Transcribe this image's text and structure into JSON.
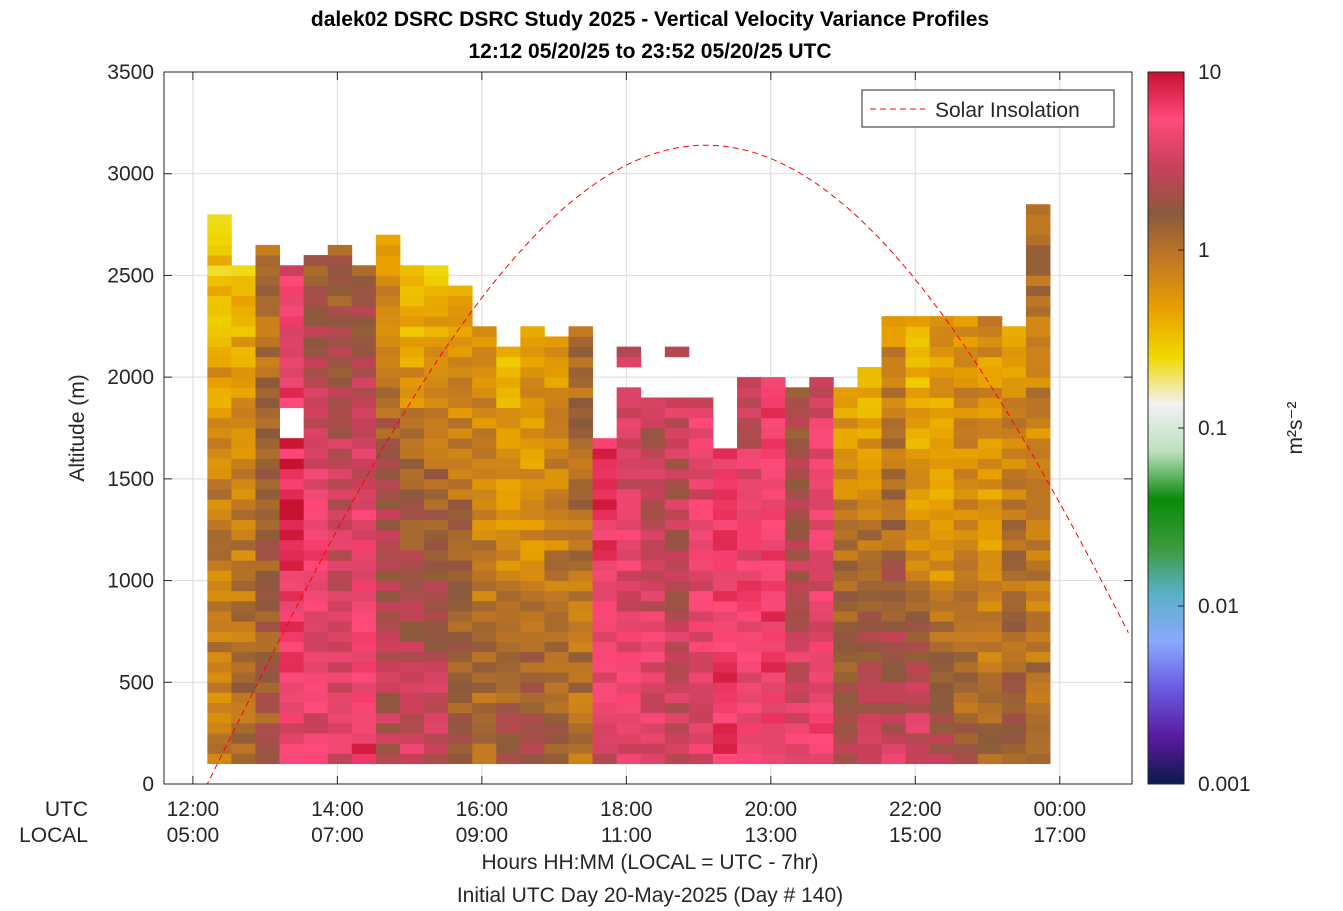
{
  "titles": {
    "line1": "dalek02 DSRC DSRC Study 2025 - Vertical Velocity Variance Profiles",
    "line2": "12:12 05/20/25 to 23:52 05/20/25  UTC"
  },
  "labels": {
    "y": "Altitude (m)",
    "x1": "Hours HH:MM  (LOCAL = UTC - 7hr)",
    "x2": "Initial UTC Day 20-May-2025 (Day # 140)",
    "utc_row": "UTC",
    "local_row": "LOCAL",
    "colorbar": "m²s⁻²"
  },
  "legend": {
    "label": "Solar Insolation",
    "color": "#ff0000",
    "position": "top-right"
  },
  "colors": {
    "colormap_stops": [
      "#0a1a4a",
      "#5a1aa0",
      "#6a5ae0",
      "#8aa8ff",
      "#5ab0c8",
      "#3a9a3a",
      "#0a8a0a",
      "#bce0bc",
      "#f2f2f2",
      "#f0d800",
      "#e8a000",
      "#c47a20",
      "#8b5a3c",
      "#c8405a",
      "#ff4a7c",
      "#c81030"
    ]
  },
  "chart_data": {
    "type": "heatmap",
    "title": "dalek02 DSRC DSRC Study 2025 - Vertical Velocity Variance Profiles",
    "subtitle": "12:12 05/20/25 to 23:52 05/20/25  UTC",
    "ylabel": "Altitude (m)",
    "xlabel": "Hours HH:MM  (LOCAL = UTC - 7hr)",
    "ylim": [
      0,
      3500
    ],
    "xlim_hours_utc": [
      11.6,
      25.0
    ],
    "y_ticks": [
      0,
      500,
      1000,
      1500,
      2000,
      2500,
      3000,
      3500
    ],
    "x_ticks_utc": [
      "12:00",
      "14:00",
      "16:00",
      "18:00",
      "20:00",
      "22:00",
      "00:00"
    ],
    "x_ticks_local": [
      "05:00",
      "07:00",
      "09:00",
      "11:00",
      "13:00",
      "15:00",
      "17:00"
    ],
    "x_tick_hours_utc": [
      12,
      14,
      16,
      18,
      20,
      22,
      24
    ],
    "colorbar": {
      "scale": "log",
      "range": [
        0.001,
        10
      ],
      "ticks": [
        "0.001",
        "0.01",
        "0.1",
        "1",
        "10"
      ],
      "tick_values": [
        0.001,
        0.01,
        0.1,
        1,
        10
      ],
      "label": "m²s⁻²"
    },
    "grid": true,
    "profile_start_hours_utc": 12.2,
    "profile_interval_hours": 0.3333,
    "profile_count": 35,
    "range_gate_m": 50,
    "lowest_gate_m": 100,
    "profile_tops_m": [
      2800,
      2550,
      2650,
      2550,
      2600,
      2650,
      2550,
      2700,
      2550,
      2550,
      2450,
      2250,
      2150,
      2250,
      2200,
      2250,
      1700,
      2150,
      1900,
      2150,
      1900,
      1650,
      2000,
      2000,
      1950,
      2000,
      1950,
      2050,
      2300,
      2300,
      2300,
      2300,
      2300,
      2300,
      2850
    ],
    "gaps_m": [
      {
        "profile": 3,
        "from": 1700,
        "to": 1850
      },
      {
        "profile": 17,
        "from": 2000,
        "to": 2050
      },
      {
        "profile": 17,
        "from": 1950,
        "to": 2000
      },
      {
        "profile": 19,
        "from": 1900,
        "to": 2100
      },
      {
        "profile": 20,
        "from": 1900,
        "to": 2100
      },
      {
        "profile": 33,
        "from": 2250,
        "to": 2300
      }
    ],
    "profile_log10_variance_by_height": [
      {
        "profile": 0,
        "base": -0.1,
        "mid": -0.1,
        "top": -0.6
      },
      {
        "profile": 1,
        "base": 0.1,
        "mid": -0.1,
        "top": -0.5
      },
      {
        "profile": 2,
        "base": 0.2,
        "mid": 0.1,
        "top": 0.0
      },
      {
        "profile": 3,
        "base": 0.6,
        "mid": 0.9,
        "top": 0.6
      },
      {
        "profile": 4,
        "base": 0.6,
        "mid": 0.7,
        "top": 0.1
      },
      {
        "profile": 5,
        "base": 0.6,
        "mid": 0.5,
        "top": 0.1
      },
      {
        "profile": 6,
        "base": 0.8,
        "mid": 0.6,
        "top": 0.2
      },
      {
        "profile": 7,
        "base": 0.4,
        "mid": 0.3,
        "top": -0.3
      },
      {
        "profile": 8,
        "base": 0.5,
        "mid": 0.2,
        "top": -0.6
      },
      {
        "profile": 9,
        "base": 0.5,
        "mid": 0.2,
        "top": -0.5
      },
      {
        "profile": 10,
        "base": 0.2,
        "mid": 0.1,
        "top": -0.4
      },
      {
        "profile": 11,
        "base": 0.1,
        "mid": -0.1,
        "top": -0.2
      },
      {
        "profile": 12,
        "base": 0.3,
        "mid": -0.2,
        "top": -0.4
      },
      {
        "profile": 13,
        "base": 0.4,
        "mid": -0.2,
        "top": -0.3
      },
      {
        "profile": 14,
        "base": 0.2,
        "mid": -0.1,
        "top": -0.3
      },
      {
        "profile": 15,
        "base": 0.0,
        "mid": 0.0,
        "top": 0.1
      },
      {
        "profile": 16,
        "base": 0.5,
        "mid": 0.7,
        "top": 0.9
      },
      {
        "profile": 17,
        "base": 0.6,
        "mid": 0.6,
        "top": 0.4
      },
      {
        "profile": 18,
        "base": 0.6,
        "mid": 0.5,
        "top": 0.4
      },
      {
        "profile": 19,
        "base": 0.5,
        "mid": 0.4,
        "top": 0.5
      },
      {
        "profile": 20,
        "base": 0.6,
        "mid": 0.6,
        "top": 0.6
      },
      {
        "profile": 21,
        "base": 0.8,
        "mid": 0.8,
        "top": 0.7
      },
      {
        "profile": 22,
        "base": 0.7,
        "mid": 0.7,
        "top": 0.4
      },
      {
        "profile": 23,
        "base": 0.7,
        "mid": 0.8,
        "top": 0.7
      },
      {
        "profile": 24,
        "base": 0.6,
        "mid": 0.4,
        "top": 0.2
      },
      {
        "profile": 25,
        "base": 0.7,
        "mid": 0.6,
        "top": 0.5
      },
      {
        "profile": 26,
        "base": 0.3,
        "mid": 0.1,
        "top": -0.4
      },
      {
        "profile": 27,
        "base": 0.4,
        "mid": 0.1,
        "top": -0.5
      },
      {
        "profile": 28,
        "base": 0.5,
        "mid": 0.1,
        "top": -0.2
      },
      {
        "profile": 29,
        "base": 0.6,
        "mid": -0.2,
        "top": -0.5
      },
      {
        "profile": 30,
        "base": 0.4,
        "mid": -0.3,
        "top": -0.3
      },
      {
        "profile": 31,
        "base": 0.2,
        "mid": -0.2,
        "top": -0.2
      },
      {
        "profile": 32,
        "base": 0.1,
        "mid": -0.3,
        "top": -0.2
      },
      {
        "profile": 33,
        "base": 0.2,
        "mid": 0.0,
        "top": -0.3
      },
      {
        "profile": 34,
        "base": 0.1,
        "mid": -0.2,
        "top": 0.1
      }
    ],
    "solar_insolation": {
      "label": "Solar Insolation",
      "style": "dashed",
      "sunrise_hours_utc": 12.2,
      "sunset_hours_utc": 26.0,
      "peak_hours_utc": 19.0,
      "peak_altitude_m": 3140
    }
  }
}
